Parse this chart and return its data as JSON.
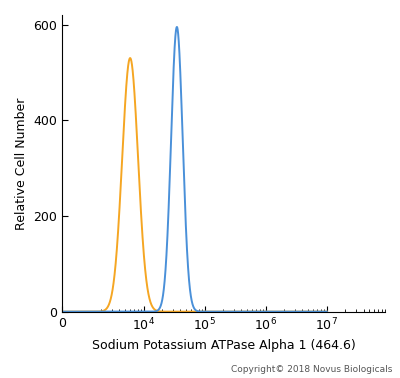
{
  "title": "",
  "xlabel": "Sodium Potassium ATPase Alpha 1 (464.6)",
  "ylabel": "Relative Cell Number",
  "copyright": "Copyright© 2018 Novus Biologicals",
  "ylim": [
    0,
    620
  ],
  "yticks": [
    0,
    200,
    400,
    600
  ],
  "orange_color": "#F5A623",
  "blue_color": "#4A90D9",
  "orange_peak_x": 6000,
  "orange_peak_y": 530,
  "orange_sigma": 0.13,
  "blue_peak_x": 35000,
  "blue_peak_y": 595,
  "blue_sigma": 0.095,
  "background_color": "#ffffff",
  "linewidth": 1.4,
  "linthresh": 1000,
  "xtick_labels": [
    "0",
    "$10^4$",
    "$10^5$",
    "$10^6$",
    "$10^7$"
  ],
  "xtick_positions": [
    0,
    10000,
    100000,
    1000000,
    10000000
  ]
}
